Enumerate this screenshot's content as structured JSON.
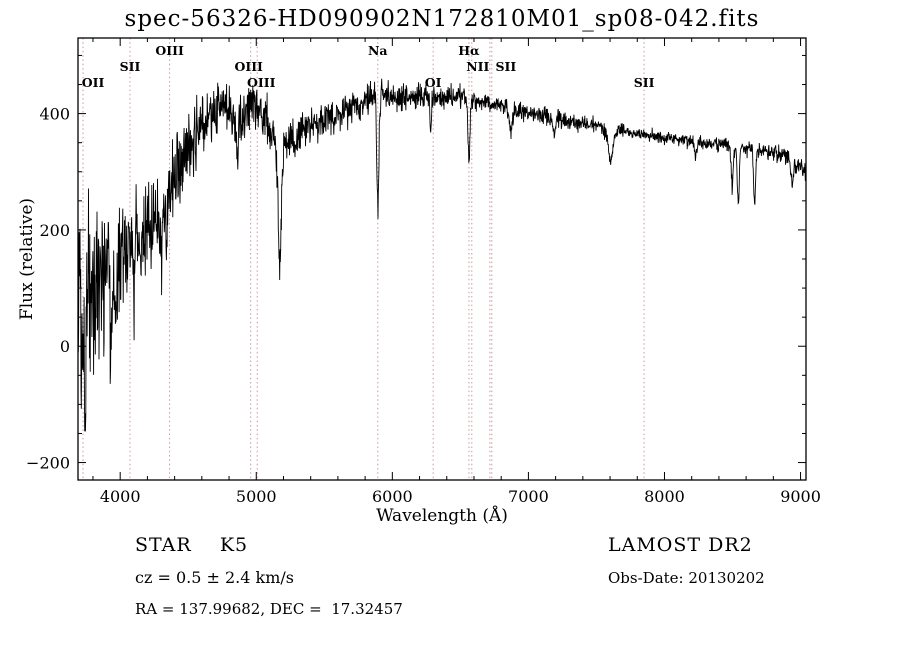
{
  "chart_data": {
    "type": "line",
    "title": "spec-56326-HD090902N172810M01_sp08-042.fits",
    "xlabel": "Wavelength (Å)",
    "ylabel": "Flux (relative)",
    "xlim": [
      3690,
      9040
    ],
    "ylim": [
      -230,
      530
    ],
    "xticks": [
      4000,
      5000,
      6000,
      7000,
      8000,
      9000
    ],
    "yticks": [
      -200,
      0,
      200,
      400
    ],
    "x_minor_step": 200,
    "y_minor_step": 50,
    "grid": false,
    "legend": "none",
    "line_color": "#000000",
    "marker_color": "#c79999",
    "noise_seed": 12,
    "spectral_lines": [
      {
        "label": "OII",
        "wavelength": 3727,
        "row": 2,
        "dx": 10
      },
      {
        "label": "SII",
        "wavelength": 4072,
        "row": 1,
        "dx": 0
      },
      {
        "label": "OIII",
        "wavelength": 4363,
        "row": 0,
        "dx": 0
      },
      {
        "label": "OIII",
        "wavelength": 4959,
        "row": 1,
        "dx": -2
      },
      {
        "label": "OIII",
        "wavelength": 5007,
        "row": 2,
        "dx": 4
      },
      {
        "label": "Na",
        "wavelength": 5893,
        "row": 0,
        "dx": 0
      },
      {
        "label": "OI",
        "wavelength": 6300,
        "row": 2,
        "dx": 0
      },
      {
        "label": "Hα",
        "wavelength": 6563,
        "row": 0,
        "dx": 0
      },
      {
        "label": "NII",
        "wavelength": 6584,
        "row": 1,
        "dx": 6
      },
      {
        "label": "SII",
        "wavelength": 6717,
        "row": 1,
        "dx": 16
      },
      {
        "label": "",
        "wavelength": 6731,
        "row": 1,
        "dx": 0
      },
      {
        "label": "SII",
        "wavelength": 7850,
        "row": 2,
        "dx": 0
      }
    ],
    "continuum": [
      [
        3690,
        120
      ],
      [
        3720,
        70
      ],
      [
        3760,
        115
      ],
      [
        3800,
        125
      ],
      [
        3850,
        115
      ],
      [
        3900,
        135
      ],
      [
        3950,
        120
      ],
      [
        4000,
        150
      ],
      [
        4060,
        165
      ],
      [
        4120,
        185
      ],
      [
        4180,
        200
      ],
      [
        4240,
        225
      ],
      [
        4300,
        225
      ],
      [
        4360,
        265
      ],
      [
        4420,
        305
      ],
      [
        4480,
        330
      ],
      [
        4540,
        355
      ],
      [
        4600,
        385
      ],
      [
        4660,
        400
      ],
      [
        4720,
        415
      ],
      [
        4780,
        405
      ],
      [
        4840,
        390
      ],
      [
        4900,
        405
      ],
      [
        4950,
        420
      ],
      [
        5000,
        415
      ],
      [
        5060,
        395
      ],
      [
        5120,
        370
      ],
      [
        5170,
        355
      ],
      [
        5220,
        350
      ],
      [
        5280,
        360
      ],
      [
        5340,
        372
      ],
      [
        5400,
        380
      ],
      [
        5500,
        390
      ],
      [
        5600,
        400
      ],
      [
        5700,
        412
      ],
      [
        5800,
        425
      ],
      [
        5900,
        432
      ],
      [
        6000,
        430
      ],
      [
        6100,
        426
      ],
      [
        6200,
        430
      ],
      [
        6300,
        426
      ],
      [
        6400,
        432
      ],
      [
        6500,
        428
      ],
      [
        6600,
        424
      ],
      [
        6700,
        420
      ],
      [
        6800,
        415
      ],
      [
        6900,
        408
      ],
      [
        7000,
        400
      ],
      [
        7100,
        396
      ],
      [
        7200,
        391
      ],
      [
        7300,
        386
      ],
      [
        7400,
        382
      ],
      [
        7500,
        378
      ],
      [
        7600,
        368
      ],
      [
        7700,
        370
      ],
      [
        7800,
        366
      ],
      [
        7900,
        362
      ],
      [
        8000,
        358
      ],
      [
        8100,
        355
      ],
      [
        8200,
        352
      ],
      [
        8300,
        350
      ],
      [
        8400,
        347
      ],
      [
        8500,
        344
      ],
      [
        8600,
        340
      ],
      [
        8700,
        336
      ],
      [
        8800,
        333
      ],
      [
        8900,
        328
      ],
      [
        8950,
        318
      ],
      [
        9000,
        312
      ],
      [
        9040,
        300
      ]
    ],
    "absorption_features": [
      {
        "center": 3745,
        "depth": 160,
        "width": 6
      },
      {
        "center": 3934,
        "depth": 110,
        "width": 6
      },
      {
        "center": 3968,
        "depth": 95,
        "width": 6
      },
      {
        "center": 4102,
        "depth": 70,
        "width": 6
      },
      {
        "center": 4226,
        "depth": 55,
        "width": 5
      },
      {
        "center": 4305,
        "depth": 65,
        "width": 10
      },
      {
        "center": 4340,
        "depth": 55,
        "width": 6
      },
      {
        "center": 4861,
        "depth": 75,
        "width": 7
      },
      {
        "center": 5172,
        "depth": 205,
        "width": 13
      },
      {
        "center": 5893,
        "depth": 185,
        "width": 8
      },
      {
        "center": 6280,
        "depth": 55,
        "width": 5
      },
      {
        "center": 6563,
        "depth": 105,
        "width": 7
      },
      {
        "center": 6870,
        "depth": 38,
        "width": 12
      },
      {
        "center": 7190,
        "depth": 25,
        "width": 10
      },
      {
        "center": 7605,
        "depth": 48,
        "width": 16
      },
      {
        "center": 8230,
        "depth": 28,
        "width": 8
      },
      {
        "center": 8498,
        "depth": 70,
        "width": 7
      },
      {
        "center": 8542,
        "depth": 100,
        "width": 7
      },
      {
        "center": 8662,
        "depth": 100,
        "width": 7
      },
      {
        "center": 8940,
        "depth": 45,
        "width": 9
      }
    ],
    "noise_amplitude": [
      [
        3690,
        230
      ],
      [
        3740,
        195
      ],
      [
        3800,
        150
      ],
      [
        3860,
        125
      ],
      [
        3950,
        105
      ],
      [
        4050,
        90
      ],
      [
        4200,
        75
      ],
      [
        4350,
        65
      ],
      [
        4500,
        58
      ],
      [
        4700,
        48
      ],
      [
        4900,
        42
      ],
      [
        5100,
        38
      ],
      [
        5300,
        33
      ],
      [
        5500,
        29
      ],
      [
        5700,
        27
      ],
      [
        5900,
        25
      ],
      [
        6100,
        23
      ],
      [
        6300,
        21
      ],
      [
        6500,
        19
      ],
      [
        6800,
        17
      ],
      [
        7100,
        15
      ],
      [
        7400,
        14
      ],
      [
        7700,
        12
      ],
      [
        8000,
        11
      ],
      [
        8300,
        11
      ],
      [
        8600,
        13
      ],
      [
        8800,
        14
      ],
      [
        9040,
        16
      ]
    ]
  },
  "annotations": {
    "class_label": "STAR    K5",
    "survey_label": "LAMOST DR2",
    "cz_label": "cz = 0.5 ± 2.4 km/s",
    "obsdate_label": "Obs-Date: 20130202",
    "radec_label": "RA = 137.99682, DEC =  17.32457"
  }
}
